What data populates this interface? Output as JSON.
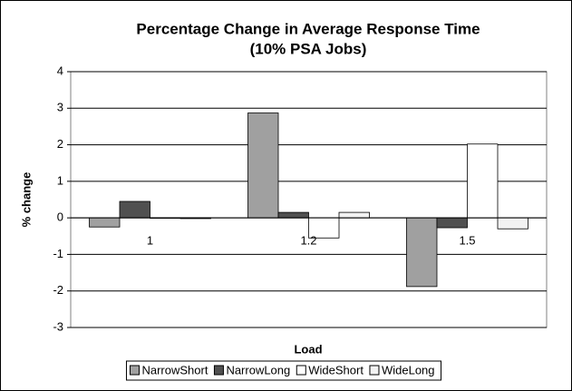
{
  "chart_data": {
    "type": "bar",
    "title": "Percentage Change in Average Response Time",
    "subtitle": "(10% PSA Jobs)",
    "x_label": "Load",
    "y_label": "% change",
    "categories": [
      "1",
      "1.2",
      "1.5"
    ],
    "series": [
      {
        "name": "NarrowShort",
        "color": "#a0a0a0",
        "values": [
          -0.25,
          2.87,
          -1.88
        ]
      },
      {
        "name": "NarrowLong",
        "color": "#505050",
        "values": [
          0.45,
          0.15,
          -0.27
        ]
      },
      {
        "name": "WideShort",
        "color": "#ffffff",
        "values": [
          0,
          -0.55,
          2.02
        ]
      },
      {
        "name": "WideLong",
        "color": "#f2f2f2",
        "values": [
          -0.02,
          0.15,
          -0.3
        ]
      }
    ],
    "ylim": [
      -3,
      4
    ],
    "yticks": [
      -3,
      -2,
      -1,
      0,
      1,
      2,
      3,
      4
    ],
    "grid": true,
    "legend": "bottom"
  }
}
